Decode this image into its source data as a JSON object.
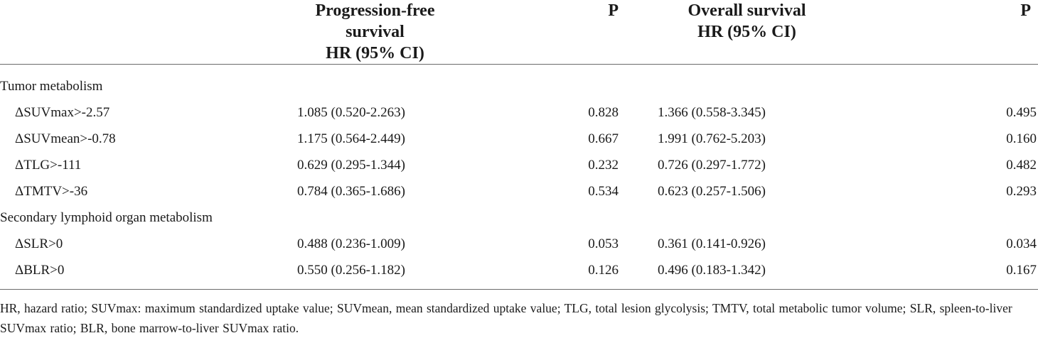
{
  "header": {
    "pfs_line1": "Progression-free survival",
    "pfs_line2": "HR (95% CI)",
    "p1": "P",
    "os_line1": "Overall survival",
    "os_line2": "HR (95% CI)",
    "p2": "P"
  },
  "sections": [
    {
      "title": "Tumor metabolism",
      "rows": [
        {
          "label": "ΔSUVmax>-2.57",
          "pfs": "1.085 (0.520-2.263)",
          "p_pfs": "0.828",
          "os": "1.366 (0.558-3.345)",
          "p_os": "0.495"
        },
        {
          "label": "ΔSUVmean>-0.78",
          "pfs": "1.175 (0.564-2.449)",
          "p_pfs": "0.667",
          "os": "1.991 (0.762-5.203)",
          "p_os": "0.160"
        },
        {
          "label": "ΔTLG>-111",
          "pfs": "0.629 (0.295-1.344)",
          "p_pfs": "0.232",
          "os": "0.726 (0.297-1.772)",
          "p_os": "0.482"
        },
        {
          "label": "ΔTMTV>-36",
          "pfs": "0.784 (0.365-1.686)",
          "p_pfs": "0.534",
          "os": "0.623 (0.257-1.506)",
          "p_os": "0.293"
        }
      ]
    },
    {
      "title": "Secondary lymphoid organ metabolism",
      "rows": [
        {
          "label": "ΔSLR>0",
          "pfs": "0.488 (0.236-1.009)",
          "p_pfs": "0.053",
          "os": "0.361 (0.141-0.926)",
          "p_os": "0.034"
        },
        {
          "label": "ΔBLR>0",
          "pfs": "0.550 (0.256-1.182)",
          "p_pfs": "0.126",
          "os": "0.496 (0.183-1.342)",
          "p_os": "0.167"
        }
      ]
    }
  ],
  "footnote": "HR, hazard ratio; SUVmax: maximum standardized uptake value; SUVmean, mean standardized uptake value; TLG, total lesion glycolysis; TMTV, total metabolic tumor volume; SLR, spleen-to-liver SUVmax ratio; BLR, bone marrow-to-liver SUVmax ratio."
}
